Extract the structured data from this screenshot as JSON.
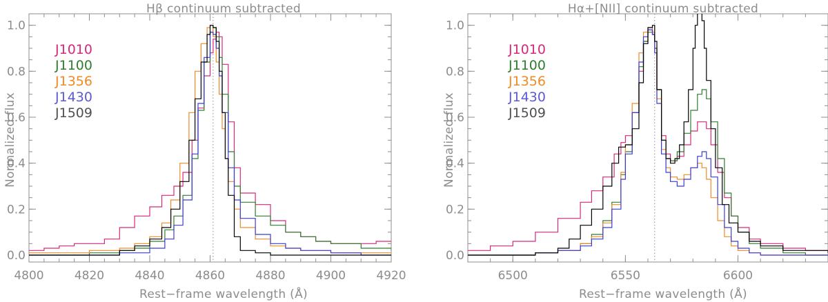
{
  "chart_data": [
    {
      "type": "line",
      "step": true,
      "title": "Hβ continuum subtracted",
      "xlabel": "Rest−frame wavelength (Å)",
      "ylabel": "Normalized flux",
      "xlim": [
        4800,
        4920
      ],
      "ylim": [
        -0.03,
        1.05
      ],
      "xticks": [
        4800,
        4820,
        4840,
        4860,
        4880,
        4900,
        4920
      ],
      "yticks": [
        0.0,
        0.2,
        0.4,
        0.6,
        0.8,
        1.0
      ],
      "ytick_labels": [
        "0.0",
        "0.2",
        "0.4",
        "0.6",
        "0.8",
        "1.0"
      ],
      "vline": 4861,
      "legend_position": "upper-left",
      "series": [
        {
          "name": "J1010",
          "color": "#d6287a",
          "x": [
            4800,
            4805,
            4810,
            4815,
            4820,
            4825,
            4830,
            4835,
            4840,
            4844,
            4848,
            4851,
            4854,
            4856,
            4858,
            4860,
            4861,
            4862,
            4863,
            4864,
            4866,
            4868,
            4870,
            4875,
            4880,
            4885,
            4890,
            4895,
            4900,
            4905,
            4910,
            4915,
            4920
          ],
          "y": [
            0.02,
            0.03,
            0.04,
            0.05,
            0.05,
            0.07,
            0.12,
            0.17,
            0.21,
            0.26,
            0.3,
            0.36,
            0.5,
            0.64,
            0.78,
            0.88,
            0.94,
            0.97,
            0.95,
            0.83,
            0.58,
            0.38,
            0.27,
            0.22,
            0.15,
            0.1,
            0.08,
            0.06,
            0.05,
            0.05,
            0.05,
            0.06,
            0.06
          ]
        },
        {
          "name": "J1100",
          "color": "#2e7d2e",
          "x": [
            4800,
            4810,
            4820,
            4830,
            4835,
            4840,
            4845,
            4848,
            4851,
            4854,
            4856,
            4858,
            4860,
            4861,
            4862,
            4863,
            4864,
            4866,
            4868,
            4870,
            4875,
            4880,
            4885,
            4890,
            4895,
            4900,
            4910,
            4920
          ],
          "y": [
            0.0,
            0.0,
            0.01,
            0.02,
            0.03,
            0.06,
            0.11,
            0.17,
            0.26,
            0.42,
            0.63,
            0.84,
            0.97,
            0.99,
            0.95,
            0.86,
            0.7,
            0.45,
            0.3,
            0.23,
            0.17,
            0.13,
            0.1,
            0.08,
            0.06,
            0.05,
            0.03,
            0.02
          ]
        },
        {
          "name": "J1356",
          "color": "#f08a24",
          "x": [
            4800,
            4810,
            4820,
            4830,
            4835,
            4840,
            4844,
            4847,
            4850,
            4853,
            4855,
            4857,
            4859,
            4860,
            4861,
            4862,
            4863,
            4864,
            4865,
            4866,
            4868,
            4870,
            4875,
            4880,
            4885,
            4890,
            4895,
            4900,
            4910,
            4920
          ],
          "y": [
            0.01,
            0.01,
            0.02,
            0.03,
            0.05,
            0.08,
            0.14,
            0.24,
            0.4,
            0.62,
            0.8,
            0.92,
            0.99,
            1.0,
            0.95,
            0.84,
            0.7,
            0.55,
            0.42,
            0.32,
            0.2,
            0.12,
            0.07,
            0.04,
            0.03,
            0.02,
            0.02,
            0.01,
            0.01,
            0.01
          ]
        },
        {
          "name": "J1430",
          "color": "#3b3bd6",
          "x": [
            4800,
            4810,
            4820,
            4830,
            4840,
            4845,
            4848,
            4851,
            4854,
            4856,
            4858,
            4860,
            4861,
            4862,
            4863,
            4864,
            4866,
            4868,
            4870,
            4875,
            4880,
            4885,
            4890,
            4900,
            4910,
            4920
          ],
          "y": [
            0.0,
            0.0,
            0.0,
            0.01,
            0.03,
            0.07,
            0.13,
            0.24,
            0.44,
            0.66,
            0.86,
            0.97,
            0.96,
            0.9,
            0.78,
            0.62,
            0.38,
            0.24,
            0.16,
            0.09,
            0.05,
            0.03,
            0.02,
            0.01,
            0.0,
            0.0
          ],
          "legend_color": "#5a5ad8"
        },
        {
          "name": "J1509",
          "color": "#000000",
          "x": [
            4800,
            4810,
            4820,
            4830,
            4835,
            4840,
            4844,
            4847,
            4850,
            4853,
            4855,
            4857,
            4859,
            4860,
            4861,
            4862,
            4863,
            4864,
            4865,
            4866,
            4868,
            4870,
            4875,
            4880,
            4890,
            4900,
            4910,
            4920
          ],
          "y": [
            0.0,
            0.0,
            0.0,
            0.02,
            0.04,
            0.07,
            0.12,
            0.2,
            0.32,
            0.5,
            0.68,
            0.84,
            0.96,
            1.0,
            0.99,
            0.93,
            0.8,
            0.62,
            0.42,
            0.26,
            0.08,
            0.02,
            0.01,
            0.0,
            0.0,
            0.0,
            0.0,
            0.0
          ],
          "legend_color": "#505050"
        }
      ]
    },
    {
      "type": "line",
      "step": true,
      "title": "Hα+[NII] continuum subtracted",
      "xlabel": "Rest−frame wavelength (Å)",
      "ylabel": "Normalized flux",
      "xlim": [
        6480,
        6640
      ],
      "ylim": [
        -0.03,
        1.05
      ],
      "xticks": [
        6500,
        6550,
        6600
      ],
      "yticks": [
        0.0,
        0.2,
        0.4,
        0.6,
        0.8,
        1.0
      ],
      "ytick_labels": [
        "0.0",
        "0.2",
        "0.4",
        "0.6",
        "0.8",
        "1.0"
      ],
      "vline": 6563,
      "legend_position": "upper-left",
      "series": [
        {
          "name": "J1010",
          "color": "#d6287a",
          "x": [
            6480,
            6490,
            6500,
            6510,
            6520,
            6530,
            6535,
            6540,
            6545,
            6548,
            6550,
            6553,
            6556,
            6558,
            6560,
            6562,
            6563,
            6564,
            6566,
            6568,
            6570,
            6573,
            6576,
            6579,
            6582,
            6584,
            6586,
            6588,
            6591,
            6594,
            6597,
            6600,
            6605,
            6610,
            6620,
            6630,
            6640
          ],
          "y": [
            0.02,
            0.04,
            0.06,
            0.1,
            0.16,
            0.23,
            0.28,
            0.34,
            0.44,
            0.49,
            0.52,
            0.62,
            0.8,
            0.93,
            0.98,
            0.96,
            0.9,
            0.72,
            0.52,
            0.44,
            0.41,
            0.43,
            0.48,
            0.54,
            0.58,
            0.58,
            0.55,
            0.48,
            0.36,
            0.25,
            0.17,
            0.12,
            0.07,
            0.05,
            0.03,
            0.02,
            0.02
          ]
        },
        {
          "name": "J1100",
          "color": "#2e7d2e",
          "x": [
            6480,
            6500,
            6510,
            6520,
            6530,
            6535,
            6540,
            6544,
            6548,
            6550,
            6553,
            6556,
            6558,
            6560,
            6562,
            6563,
            6564,
            6566,
            6568,
            6570,
            6573,
            6576,
            6579,
            6582,
            6584,
            6586,
            6588,
            6591,
            6594,
            6597,
            6600,
            6605,
            6610,
            6620,
            6630,
            6640
          ],
          "y": [
            0.0,
            0.0,
            0.01,
            0.02,
            0.05,
            0.09,
            0.15,
            0.23,
            0.35,
            0.45,
            0.62,
            0.82,
            0.93,
            0.97,
            0.96,
            0.9,
            0.72,
            0.5,
            0.42,
            0.41,
            0.45,
            0.53,
            0.63,
            0.7,
            0.72,
            0.68,
            0.58,
            0.42,
            0.27,
            0.17,
            0.1,
            0.05,
            0.03,
            0.01,
            0.0,
            0.0
          ]
        },
        {
          "name": "J1356",
          "color": "#f08a24",
          "x": [
            6480,
            6500,
            6510,
            6520,
            6530,
            6535,
            6540,
            6544,
            6548,
            6550,
            6553,
            6556,
            6558,
            6560,
            6562,
            6563,
            6564,
            6566,
            6568,
            6570,
            6573,
            6576,
            6579,
            6582,
            6584,
            6586,
            6588,
            6591,
            6594,
            6597,
            6600,
            6605,
            6610,
            6620,
            6640
          ],
          "y": [
            0.0,
            0.0,
            0.01,
            0.02,
            0.05,
            0.08,
            0.14,
            0.22,
            0.36,
            0.48,
            0.66,
            0.88,
            0.97,
            0.99,
            0.97,
            0.88,
            0.68,
            0.46,
            0.38,
            0.34,
            0.33,
            0.35,
            0.38,
            0.4,
            0.38,
            0.33,
            0.25,
            0.15,
            0.08,
            0.04,
            0.02,
            0.01,
            0.0,
            0.0,
            0.0
          ]
        },
        {
          "name": "J1430",
          "color": "#3b3bd6",
          "x": [
            6480,
            6500,
            6510,
            6520,
            6530,
            6535,
            6540,
            6544,
            6548,
            6550,
            6553,
            6556,
            6558,
            6560,
            6562,
            6563,
            6564,
            6566,
            6568,
            6570,
            6573,
            6576,
            6579,
            6582,
            6584,
            6586,
            6588,
            6591,
            6594,
            6597,
            6600,
            6605,
            6610,
            6620,
            6640
          ],
          "y": [
            0.0,
            0.0,
            0.01,
            0.02,
            0.04,
            0.07,
            0.12,
            0.2,
            0.33,
            0.44,
            0.62,
            0.84,
            0.95,
            0.98,
            0.96,
            0.88,
            0.66,
            0.44,
            0.36,
            0.32,
            0.3,
            0.33,
            0.38,
            0.43,
            0.45,
            0.42,
            0.34,
            0.22,
            0.12,
            0.06,
            0.03,
            0.01,
            0.0,
            0.0,
            0.0
          ],
          "legend_color": "#5a5ad8"
        },
        {
          "name": "J1509",
          "color": "#000000",
          "x": [
            6480,
            6500,
            6510,
            6520,
            6525,
            6530,
            6535,
            6540,
            6544,
            6547,
            6550,
            6553,
            6556,
            6558,
            6560,
            6562,
            6563,
            6564,
            6566,
            6568,
            6570,
            6572,
            6574,
            6576,
            6578,
            6580,
            6581,
            6582,
            6583,
            6584,
            6585,
            6586,
            6588,
            6590,
            6593,
            6596,
            6600,
            6605,
            6610,
            6620,
            6640
          ],
          "y": [
            0.0,
            0.0,
            0.01,
            0.03,
            0.07,
            0.13,
            0.2,
            0.3,
            0.4,
            0.47,
            0.48,
            0.55,
            0.75,
            0.92,
            0.99,
            1.0,
            0.93,
            0.72,
            0.5,
            0.42,
            0.4,
            0.42,
            0.48,
            0.58,
            0.72,
            0.9,
            1.0,
            1.08,
            1.08,
            1.02,
            0.9,
            0.76,
            0.55,
            0.38,
            0.22,
            0.14,
            0.1,
            0.06,
            0.04,
            0.02,
            0.01
          ],
          "legend_color": "#505050"
        }
      ]
    }
  ]
}
